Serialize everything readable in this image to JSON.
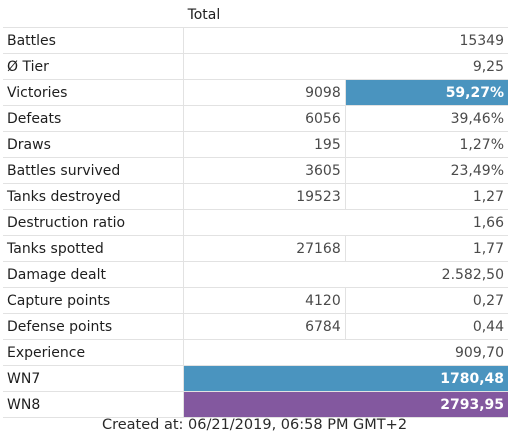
{
  "table": {
    "header": {
      "label": "",
      "total": "Total"
    },
    "rows": [
      {
        "label": "Battles",
        "abs": "",
        "value": "15349",
        "style": ""
      },
      {
        "label": "Ø Tier",
        "abs": "",
        "value": "9,25",
        "style": ""
      },
      {
        "label": "Victories",
        "abs": "9098",
        "value": "59,27%",
        "style": "blue"
      },
      {
        "label": "Defeats",
        "abs": "6056",
        "value": "39,46%",
        "style": ""
      },
      {
        "label": "Draws",
        "abs": "195",
        "value": "1,27%",
        "style": ""
      },
      {
        "label": "Battles survived",
        "abs": "3605",
        "value": "23,49%",
        "style": ""
      },
      {
        "label": "Tanks destroyed",
        "abs": "19523",
        "value": "1,27",
        "style": ""
      },
      {
        "label": "Destruction ratio",
        "abs": "",
        "value": "1,66",
        "style": ""
      },
      {
        "label": "Tanks spotted",
        "abs": "27168",
        "value": "1,77",
        "style": ""
      },
      {
        "label": "Damage dealt",
        "abs": "",
        "value": "2.582,50",
        "style": ""
      },
      {
        "label": "Capture points",
        "abs": "4120",
        "value": "0,27",
        "style": ""
      },
      {
        "label": "Defense points",
        "abs": "6784",
        "value": "0,44",
        "style": ""
      },
      {
        "label": "Experience",
        "abs": "",
        "value": "909,70",
        "style": ""
      },
      {
        "label": "WN7",
        "abs": "",
        "value": "1780,48",
        "style": "blue"
      },
      {
        "label": "WN8",
        "abs": "",
        "value": "2793,95",
        "style": "purple"
      }
    ]
  },
  "colors": {
    "victory_highlight": "#4a94bf",
    "wn7_highlight": "#4a94bf",
    "wn8_highlight": "#83589f"
  },
  "footer": {
    "created": "Created at: 06/21/2019, 06:58 PM GMT+2"
  }
}
